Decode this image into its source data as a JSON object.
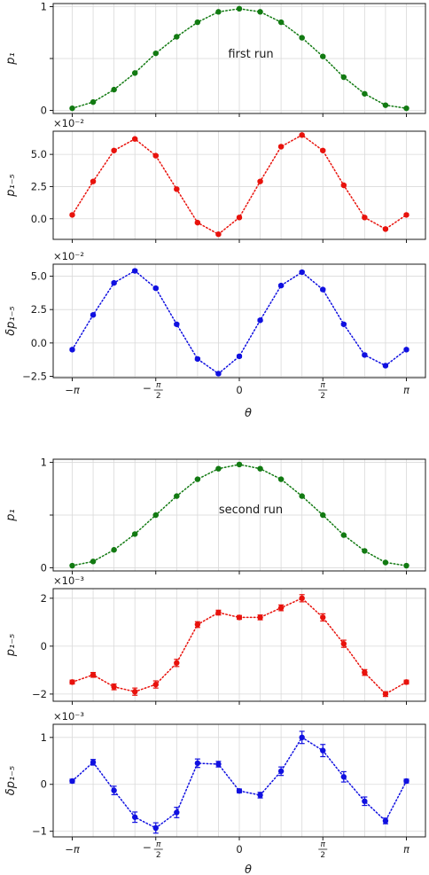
{
  "chart_data": [
    {
      "type": "line",
      "panel": "run1-p1",
      "ylabel": "p₁",
      "annotation": "first run",
      "multiplier": "",
      "color": "#127a12",
      "ylim": [
        -0.03,
        1.03
      ],
      "yticks": [
        0,
        0.5,
        1
      ],
      "ytick_labels": [
        "0",
        "",
        "1"
      ],
      "x": [
        -3.1416,
        -2.7489,
        -2.3562,
        -1.9635,
        -1.5708,
        -1.1781,
        -0.7854,
        -0.3927,
        0.0,
        0.3927,
        0.7854,
        1.1781,
        1.5708,
        1.9635,
        2.3562,
        2.7489,
        3.1416
      ],
      "y": [
        0.02,
        0.08,
        0.2,
        0.36,
        0.55,
        0.71,
        0.85,
        0.95,
        0.98,
        0.95,
        0.85,
        0.7,
        0.52,
        0.32,
        0.16,
        0.05,
        0.02
      ],
      "yerr": [
        0.006,
        0.006,
        0.006,
        0.006,
        0.006,
        0.006,
        0.006,
        0.006,
        0.006,
        0.006,
        0.006,
        0.006,
        0.006,
        0.006,
        0.006,
        0.006,
        0.006
      ]
    },
    {
      "type": "line",
      "panel": "run1-p15",
      "ylabel": "p₁₋₅",
      "annotation": "",
      "multiplier": "×10⁻²",
      "color": "#e8120c",
      "ylim": [
        -1.6,
        6.8
      ],
      "yticks": [
        0,
        2.5,
        5
      ],
      "ytick_labels": [
        "0.0",
        "2.5",
        "5.0"
      ],
      "x": [
        -3.1416,
        -2.7489,
        -2.3562,
        -1.9635,
        -1.5708,
        -1.1781,
        -0.7854,
        -0.3927,
        0.0,
        0.3927,
        0.7854,
        1.1781,
        1.5708,
        1.9635,
        2.3562,
        2.7489,
        3.1416
      ],
      "y": [
        0.3,
        2.9,
        5.3,
        6.2,
        4.9,
        2.3,
        -0.3,
        -1.2,
        0.1,
        2.9,
        5.6,
        6.5,
        5.3,
        2.6,
        0.1,
        -0.8,
        0.3
      ],
      "yerr": [
        0.07,
        0.07,
        0.07,
        0.07,
        0.07,
        0.07,
        0.07,
        0.07,
        0.07,
        0.07,
        0.07,
        0.07,
        0.07,
        0.07,
        0.07,
        0.07,
        0.07
      ]
    },
    {
      "type": "line",
      "panel": "run1-dp15",
      "ylabel": "δp₁₋₅",
      "annotation": "",
      "multiplier": "×10⁻²",
      "color": "#1010e0",
      "ylim": [
        -2.6,
        5.9
      ],
      "yticks": [
        -2.5,
        0,
        2.5,
        5
      ],
      "ytick_labels": [
        "−2.5",
        "0.0",
        "2.5",
        "5.0"
      ],
      "x": [
        -3.1416,
        -2.7489,
        -2.3562,
        -1.9635,
        -1.5708,
        -1.1781,
        -0.7854,
        -0.3927,
        0.0,
        0.3927,
        0.7854,
        1.1781,
        1.5708,
        1.9635,
        2.3562,
        2.7489,
        3.1416
      ],
      "y": [
        -0.5,
        2.1,
        4.5,
        5.4,
        4.1,
        1.4,
        -1.2,
        -2.3,
        -1.0,
        1.7,
        4.3,
        5.3,
        4.0,
        1.4,
        -0.9,
        -1.7,
        -0.5
      ],
      "yerr": [
        0.08,
        0.08,
        0.08,
        0.08,
        0.08,
        0.08,
        0.08,
        0.08,
        0.08,
        0.08,
        0.08,
        0.08,
        0.08,
        0.08,
        0.08,
        0.08,
        0.08
      ]
    },
    {
      "type": "line",
      "panel": "run2-p1",
      "ylabel": "p₁",
      "annotation": "second run",
      "multiplier": "",
      "color": "#127a12",
      "ylim": [
        -0.03,
        1.03
      ],
      "yticks": [
        0,
        0.5,
        1
      ],
      "ytick_labels": [
        "0",
        "",
        "1"
      ],
      "x": [
        -3.1416,
        -2.7489,
        -2.3562,
        -1.9635,
        -1.5708,
        -1.1781,
        -0.7854,
        -0.3927,
        0.0,
        0.3927,
        0.7854,
        1.1781,
        1.5708,
        1.9635,
        2.3562,
        2.7489,
        3.1416
      ],
      "y": [
        0.02,
        0.06,
        0.17,
        0.32,
        0.5,
        0.68,
        0.84,
        0.94,
        0.98,
        0.94,
        0.84,
        0.68,
        0.5,
        0.31,
        0.16,
        0.05,
        0.02
      ],
      "yerr": [
        0.006,
        0.006,
        0.006,
        0.006,
        0.006,
        0.006,
        0.006,
        0.006,
        0.006,
        0.006,
        0.006,
        0.006,
        0.006,
        0.006,
        0.006,
        0.006,
        0.006
      ]
    },
    {
      "type": "line",
      "panel": "run2-p15",
      "ylabel": "p₁₋₅",
      "annotation": "",
      "multiplier": "×10⁻³",
      "color": "#e8120c",
      "ylim": [
        -2.3,
        2.4
      ],
      "yticks": [
        -2,
        0,
        2
      ],
      "ytick_labels": [
        "−2",
        "0",
        "2"
      ],
      "x": [
        -3.1416,
        -2.7489,
        -2.3562,
        -1.9635,
        -1.5708,
        -1.1781,
        -0.7854,
        -0.3927,
        0.0,
        0.3927,
        0.7854,
        1.1781,
        1.5708,
        1.9635,
        2.3562,
        2.7489,
        3.1416
      ],
      "y": [
        -1.5,
        -1.2,
        -1.7,
        -1.9,
        -1.6,
        -0.7,
        0.9,
        1.4,
        1.2,
        1.2,
        1.6,
        2.0,
        1.2,
        0.1,
        -1.1,
        -2.0,
        -1.5
      ],
      "yerr": [
        0.08,
        0.1,
        0.12,
        0.15,
        0.15,
        0.15,
        0.12,
        0.1,
        0.08,
        0.1,
        0.12,
        0.15,
        0.15,
        0.15,
        0.12,
        0.1,
        0.08
      ]
    },
    {
      "type": "line",
      "panel": "run2-dp15",
      "ylabel": "δp₁₋₅",
      "annotation": "",
      "multiplier": "×10⁻³",
      "color": "#1010e0",
      "ylim": [
        -1.12,
        1.28
      ],
      "yticks": [
        -1,
        0,
        1
      ],
      "ytick_labels": [
        "−1",
        "0",
        "1"
      ],
      "x": [
        -3.1416,
        -2.7489,
        -2.3562,
        -1.9635,
        -1.5708,
        -1.1781,
        -0.7854,
        -0.3927,
        0.0,
        0.3927,
        0.7854,
        1.1781,
        1.5708,
        1.9635,
        2.3562,
        2.7489,
        3.1416
      ],
      "y": [
        0.07,
        0.47,
        -0.13,
        -0.7,
        -0.93,
        -0.6,
        0.45,
        0.43,
        -0.14,
        -0.23,
        0.28,
        1.0,
        0.72,
        0.16,
        -0.36,
        -0.78,
        0.07
      ],
      "yerr": [
        0.04,
        0.06,
        0.09,
        0.11,
        0.11,
        0.11,
        0.09,
        0.06,
        0.04,
        0.06,
        0.09,
        0.13,
        0.13,
        0.11,
        0.09,
        0.06,
        0.04
      ]
    }
  ],
  "x_axis": {
    "label": "θ",
    "xlim": [
      -3.5,
      3.5
    ],
    "ticks": [
      -3.1416,
      -1.5708,
      0,
      1.5708,
      3.1416
    ],
    "tick_labels": [
      "−π",
      "−π/2",
      "0",
      "π/2",
      "π"
    ],
    "minor_grid": [
      -2.7489,
      -2.3562,
      -1.9635,
      -1.1781,
      -0.7854,
      -0.3927,
      0.3927,
      0.7854,
      1.1781,
      1.9635,
      2.3562,
      2.7489
    ]
  }
}
